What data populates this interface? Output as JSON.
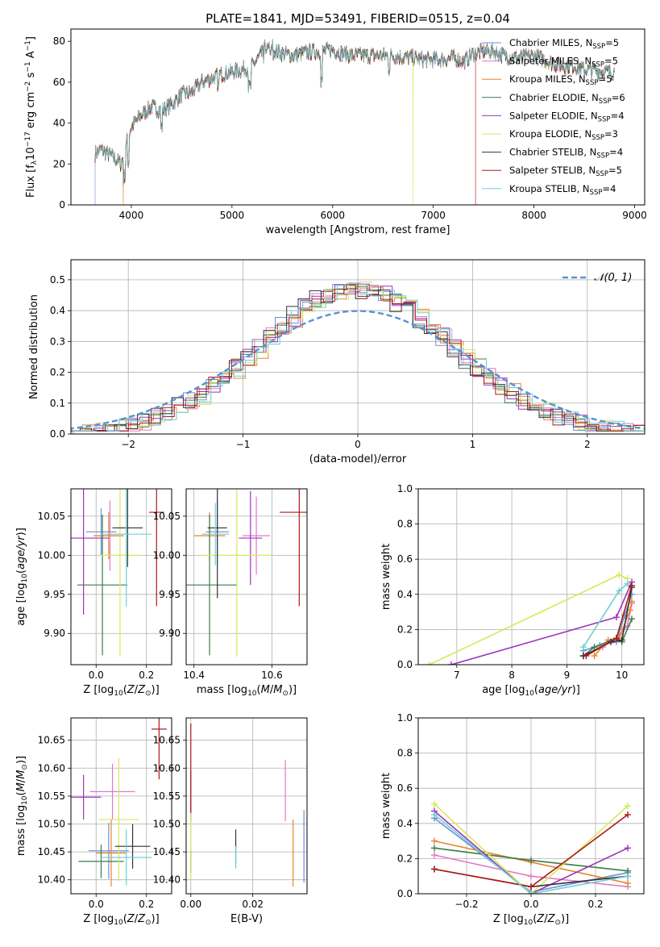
{
  "figure_title": "PLATE=1841, MJD=53491, FIBERID=0515, z=0.04",
  "colors": {
    "Chabrier MILES": "#6f8fd1",
    "Salpeter MILES": "#e07ac8",
    "Kroupa MILES": "#e8842d",
    "Chabrier ELODIE": "#3c7a4a",
    "Salpeter ELODIE": "#9b34b8",
    "Kroupa ELODIE": "#d6e85a",
    "Chabrier STELIB": "#333333",
    "Salpeter STELIB": "#b01818",
    "Kroupa STELIB": "#6fcfd6",
    "gaussian": "#5b8fd6"
  },
  "chart_data": [
    {
      "id": "spectrum",
      "type": "line",
      "title": "",
      "xlabel": "wavelength [Angstrom, rest frame]",
      "ylabel": "Flux [f",
      "ylabel_parts": [
        "Flux [f",
        "λ",
        "10",
        "−17",
        " erg cm",
        "−2",
        " s",
        "−1",
        " A",
        "−1",
        "]"
      ],
      "xlim": [
        3400,
        9100
      ],
      "ylim": [
        0,
        86
      ],
      "xticks": [
        4000,
        5000,
        6000,
        7000,
        8000,
        9000
      ],
      "yticks": [
        0,
        20,
        40,
        60,
        80
      ],
      "continuum": {
        "x": [
          3640,
          3700,
          3800,
          3900,
          3950,
          4000,
          4100,
          4200,
          4300,
          4400,
          4500,
          4600,
          4700,
          4800,
          4900,
          5000,
          5100,
          5200,
          5300,
          5400,
          5500,
          5600,
          5700,
          5800,
          5900,
          6000,
          6100,
          6200,
          6300,
          6400,
          6500,
          6600,
          6700,
          6800,
          6900,
          7000,
          7100,
          7200,
          7300,
          7400,
          7500,
          7600,
          7700,
          7800,
          7900,
          8000,
          8100,
          8200,
          8300,
          8400,
          8500,
          8600,
          8700,
          8800
        ],
        "y": [
          25,
          27,
          24,
          20,
          30,
          38,
          44,
          48,
          46,
          49,
          54,
          55,
          60,
          62,
          64,
          65,
          66,
          68,
          74,
          76,
          74,
          73,
          74,
          75,
          75,
          76,
          74,
          73,
          73,
          73,
          73,
          73,
          72,
          72,
          71,
          71,
          71,
          72,
          70,
          74,
          75,
          75,
          73,
          72,
          72,
          73,
          71,
          69,
          68,
          68,
          66,
          66,
          65,
          65
        ]
      },
      "drops": [
        {
          "series": "Chabrier MILES",
          "x": 3640
        },
        {
          "series": "Kroupa MILES",
          "x": 3920
        },
        {
          "series": "Kroupa ELODIE",
          "x": 6800
        },
        {
          "series": "Salpeter STELIB",
          "x": 7420
        }
      ],
      "series_names": [
        "Chabrier MILES, N",
        "Salpeter MILES, N",
        "Kroupa MILES, N",
        "Chabrier ELODIE, N",
        "Salpeter ELODIE, N",
        "Kroupa ELODIE, N",
        "Chabrier STELIB, N",
        "Salpeter STELIB, N",
        "Kroupa STELIB, N"
      ],
      "legend": [
        {
          "series": "Chabrier MILES",
          "label": "Chabrier MILES, N",
          "sub": "SSP",
          "value": "=5"
        },
        {
          "series": "Salpeter MILES",
          "label": "Salpeter MILES, N",
          "sub": "SSP",
          "value": "=5"
        },
        {
          "series": "Kroupa MILES",
          "label": "Kroupa MILES, N",
          "sub": "SSP",
          "value": "=5"
        },
        {
          "series": "Chabrier ELODIE",
          "label": "Chabrier ELODIE, N",
          "sub": "SSP",
          "value": "=6"
        },
        {
          "series": "Salpeter ELODIE",
          "label": "Salpeter ELODIE, N",
          "sub": "SSP",
          "value": "=4"
        },
        {
          "series": "Kroupa ELODIE",
          "label": "Kroupa ELODIE, N",
          "sub": "SSP",
          "value": "=3"
        },
        {
          "series": "Chabrier STELIB",
          "label": "Chabrier STELIB, N",
          "sub": "SSP",
          "value": "=4"
        },
        {
          "series": "Salpeter STELIB",
          "label": "Salpeter STELIB, N",
          "sub": "SSP",
          "value": "=5"
        },
        {
          "series": "Kroupa STELIB",
          "label": "Kroupa STELIB, N",
          "sub": "SSP",
          "value": "=4"
        }
      ],
      "legend_placement": "top-right",
      "grid": false
    },
    {
      "id": "residuals",
      "type": "histogram",
      "title": "",
      "xlabel": "(data-model)/error",
      "ylabel": "Normed distribution",
      "xlim": [
        -2.5,
        2.5
      ],
      "ylim": [
        0,
        0.565
      ],
      "xticks": [
        -2,
        -1,
        0,
        1,
        2
      ],
      "yticks": [
        0.0,
        0.1,
        0.2,
        0.3,
        0.4,
        0.5
      ],
      "bin_width": 0.1,
      "reference_curve": {
        "name": "𝒩(0, 1)",
        "mean": 0,
        "sigma": 1
      },
      "legend_placement": "top-right",
      "grid": true
    },
    {
      "id": "age_vs_Z",
      "type": "errorbar",
      "xlabel": "Z [log",
      "ylabel": "age  [log",
      "xlim": [
        -0.1,
        0.3
      ],
      "ylim": [
        9.86,
        10.085
      ],
      "xticks": [
        0.0,
        0.2
      ],
      "yticks": [
        9.9,
        9.95,
        10.0,
        10.05
      ],
      "points": [
        {
          "series": "Chabrier MILES",
          "x": 0.02,
          "xerr": 0.06,
          "y": 10.03,
          "yerr": 0.03
        },
        {
          "series": "Salpeter MILES",
          "x": 0.055,
          "xerr": 0.05,
          "y": 10.025,
          "yerr": 0.045
        },
        {
          "series": "Kroupa MILES",
          "x": 0.05,
          "xerr": 0.06,
          "y": 10.025,
          "yerr": 0.03
        },
        {
          "series": "Chabrier ELODIE",
          "x": 0.025,
          "xerr": 0.1,
          "y": 9.962,
          "yerr": 0.09
        },
        {
          "series": "Salpeter ELODIE",
          "x": -0.05,
          "xerr": 0.1,
          "y": 10.022,
          "yerr": 0.098
        },
        {
          "series": "Kroupa ELODIE",
          "x": 0.095,
          "xerr": 0.08,
          "y": 10.0,
          "yerr": 0.13
        },
        {
          "series": "Chabrier STELIB",
          "x": 0.125,
          "xerr": 0.06,
          "y": 10.035,
          "yerr": 0.05
        },
        {
          "series": "Salpeter STELIB",
          "x": 0.24,
          "xerr": 0.03,
          "y": 10.055,
          "yerr": 0.12
        },
        {
          "series": "Kroupa STELIB",
          "x": 0.12,
          "xerr": 0.1,
          "y": 10.027,
          "yerr": 0.093
        }
      ],
      "grid": true
    },
    {
      "id": "age_vs_mass",
      "type": "errorbar",
      "xlabel": "mass [log",
      "xlim": [
        10.38,
        10.69
      ],
      "ylim": [
        9.86,
        10.085
      ],
      "xticks": [
        10.4,
        10.6
      ],
      "yticks": [
        9.9,
        9.95,
        10.0,
        10.05
      ],
      "points": [
        {
          "series": "Chabrier MILES",
          "x": 10.46,
          "xerr": 0.03,
          "y": 10.03,
          "yerr": 0.042
        },
        {
          "series": "Salpeter MILES",
          "x": 10.56,
          "xerr": 0.035,
          "y": 10.025,
          "yerr": 0.05
        },
        {
          "series": "Kroupa MILES",
          "x": 10.44,
          "xerr": 0.04,
          "y": 10.025,
          "yerr": 0.03
        },
        {
          "series": "Chabrier ELODIE",
          "x": 10.44,
          "xerr": 0.07,
          "y": 9.962,
          "yerr": 0.09
        },
        {
          "series": "Salpeter ELODIE",
          "x": 10.545,
          "xerr": 0.03,
          "y": 10.022,
          "yerr": 0.06
        },
        {
          "series": "Kroupa ELODIE",
          "x": 10.51,
          "xerr": 0.09,
          "y": 10.0,
          "yerr": 0.13
        },
        {
          "series": "Chabrier STELIB",
          "x": 10.46,
          "xerr": 0.025,
          "y": 10.035,
          "yerr": 0.09
        },
        {
          "series": "Salpeter STELIB",
          "x": 10.67,
          "xerr": 0.05,
          "y": 10.055,
          "yerr": 0.12
        },
        {
          "series": "Kroupa STELIB",
          "x": 10.455,
          "xerr": 0.035,
          "y": 10.027,
          "yerr": 0.04
        }
      ],
      "grid": true
    },
    {
      "id": "weight_vs_age",
      "type": "line",
      "xlabel": "age  [log",
      "ylabel": "mass weight",
      "xlim": [
        6.3,
        10.4
      ],
      "ylim": [
        0,
        1.0
      ],
      "xticks": [
        7,
        8,
        9,
        10
      ],
      "yticks": [
        0.0,
        0.2,
        0.4,
        0.6,
        0.8,
        1.0
      ],
      "series": [
        {
          "series": "Chabrier MILES",
          "x": [
            9.3,
            9.6,
            9.9,
            10.05,
            10.18
          ],
          "y": [
            0.08,
            0.11,
            0.13,
            0.28,
            0.4
          ]
        },
        {
          "series": "Salpeter MILES",
          "x": [
            9.3,
            9.65,
            9.9,
            10.1,
            10.18
          ],
          "y": [
            0.05,
            0.1,
            0.15,
            0.22,
            0.35
          ]
        },
        {
          "series": "Kroupa MILES",
          "x": [
            9.5,
            9.75,
            9.95,
            10.15,
            10.18
          ],
          "y": [
            0.05,
            0.14,
            0.15,
            0.31,
            0.36
          ]
        },
        {
          "series": "Chabrier ELODIE",
          "x": [
            9.3,
            9.5,
            9.9,
            10.0,
            10.18
          ],
          "y": [
            0.05,
            0.1,
            0.15,
            0.13,
            0.26
          ]
        },
        {
          "series": "Salpeter ELODIE",
          "x": [
            6.9,
            9.9,
            10.18
          ],
          "y": [
            0.0,
            0.27,
            0.47
          ]
        },
        {
          "series": "Kroupa ELODIE",
          "x": [
            6.5,
            9.95,
            10.1
          ],
          "y": [
            0.0,
            0.51,
            0.49
          ]
        },
        {
          "series": "Chabrier STELIB",
          "x": [
            9.3,
            9.8,
            10.0,
            10.18
          ],
          "y": [
            0.05,
            0.13,
            0.14,
            0.44
          ]
        },
        {
          "series": "Salpeter STELIB",
          "x": [
            9.35,
            9.9,
            10.18
          ],
          "y": [
            0.05,
            0.15,
            0.45
          ]
        },
        {
          "series": "Kroupa STELIB",
          "x": [
            9.3,
            9.95,
            10.1
          ],
          "y": [
            0.1,
            0.42,
            0.46
          ]
        }
      ],
      "grid": true
    },
    {
      "id": "mass_vs_Z",
      "type": "errorbar",
      "xlabel": "Z [log",
      "ylabel": "mass [log",
      "xlim": [
        -0.1,
        0.3
      ],
      "ylim": [
        10.375,
        10.69
      ],
      "xticks": [
        0.0,
        0.2
      ],
      "yticks": [
        10.4,
        10.45,
        10.5,
        10.55,
        10.6,
        10.65
      ],
      "points": [
        {
          "series": "Chabrier MILES",
          "x": 0.05,
          "xerr": 0.08,
          "y": 10.452,
          "yerr": 0.05
        },
        {
          "series": "Salpeter MILES",
          "x": 0.065,
          "xerr": 0.09,
          "y": 10.558,
          "yerr": 0.05
        },
        {
          "series": "Kroupa MILES",
          "x": 0.06,
          "xerr": 0.06,
          "y": 10.448,
          "yerr": 0.06
        },
        {
          "series": "Chabrier ELODIE",
          "x": 0.02,
          "xerr": 0.09,
          "y": 10.433,
          "yerr": 0.03
        },
        {
          "series": "Salpeter ELODIE",
          "x": -0.05,
          "xerr": 0.07,
          "y": 10.548,
          "yerr": 0.04
        },
        {
          "series": "Kroupa ELODIE",
          "x": 0.09,
          "xerr": 0.08,
          "y": 10.508,
          "yerr": 0.11
        },
        {
          "series": "Chabrier STELIB",
          "x": 0.145,
          "xerr": 0.07,
          "y": 10.46,
          "yerr": 0.04
        },
        {
          "series": "Salpeter STELIB",
          "x": 0.25,
          "xerr": 0.03,
          "y": 10.67,
          "yerr": 0.09
        },
        {
          "series": "Kroupa STELIB",
          "x": 0.12,
          "xerr": 0.1,
          "y": 10.44,
          "yerr": 0.05
        }
      ],
      "grid": true
    },
    {
      "id": "mass_vs_EBV",
      "type": "errorbar",
      "xlabel": "E(B-V)",
      "xlim": [
        -0.0015,
        0.0375
      ],
      "ylim": [
        10.375,
        10.69
      ],
      "xticks": [
        0.0,
        0.02
      ],
      "yticks": [
        10.4,
        10.45,
        10.5,
        10.55,
        10.6,
        10.65
      ],
      "points": [
        {
          "series": "Chabrier MILES",
          "x": 0.0365,
          "y": 10.46,
          "yerr": 0.065
        },
        {
          "series": "Salpeter MILES",
          "x": 0.0305,
          "y": 10.56,
          "yerr": 0.055
        },
        {
          "series": "Kroupa MILES",
          "x": 0.033,
          "y": 10.448,
          "yerr": 0.06
        },
        {
          "series": "Chabrier ELODIE",
          "x": 0.0,
          "y": 10.433,
          "yerr": 0.02
        },
        {
          "series": "Salpeter ELODIE",
          "x": 0.0,
          "y": 10.55,
          "yerr": 0.045
        },
        {
          "series": "Kroupa ELODIE",
          "x": 0.0,
          "y": 10.46,
          "yerr": 0.06
        },
        {
          "series": "Chabrier STELIB",
          "x": 0.0145,
          "y": 10.46,
          "yerr": 0.03
        },
        {
          "series": "Salpeter STELIB",
          "x": 0.0,
          "y": 10.6,
          "yerr": 0.08
        },
        {
          "series": "Kroupa STELIB",
          "x": 0.0145,
          "y": 10.44,
          "yerr": 0.02
        }
      ],
      "grid": true
    },
    {
      "id": "weight_vs_Z",
      "type": "line",
      "xlabel": "Z [log",
      "ylabel": "mass weight",
      "xlim": [
        -0.35,
        0.35
      ],
      "ylim": [
        0,
        1.0
      ],
      "xticks": [
        -0.2,
        0.0,
        0.2
      ],
      "yticks": [
        0.0,
        0.2,
        0.4,
        0.6,
        0.8,
        1.0
      ],
      "series": [
        {
          "series": "Chabrier MILES",
          "x": [
            -0.3,
            0.0,
            0.3
          ],
          "y": [
            0.43,
            0.01,
            0.12
          ]
        },
        {
          "series": "Salpeter MILES",
          "x": [
            -0.3,
            0.0,
            0.3
          ],
          "y": [
            0.22,
            0.1,
            0.04
          ]
        },
        {
          "series": "Kroupa MILES",
          "x": [
            -0.3,
            0.0,
            0.3
          ],
          "y": [
            0.3,
            0.18,
            0.06
          ]
        },
        {
          "series": "Chabrier ELODIE",
          "x": [
            -0.3,
            0.0,
            0.3
          ],
          "y": [
            0.26,
            0.19,
            0.13
          ]
        },
        {
          "series": "Salpeter ELODIE",
          "x": [
            -0.3,
            0.0,
            0.3
          ],
          "y": [
            0.47,
            0.0,
            0.26
          ]
        },
        {
          "series": "Kroupa ELODIE",
          "x": [
            -0.3,
            0.0,
            0.3
          ],
          "y": [
            0.51,
            0.0,
            0.5
          ]
        },
        {
          "series": "Chabrier STELIB",
          "x": [
            -0.3,
            0.0,
            0.3
          ],
          "y": [
            0.14,
            0.04,
            0.1
          ]
        },
        {
          "series": "Salpeter STELIB",
          "x": [
            -0.3,
            0.0,
            0.3
          ],
          "y": [
            0.14,
            0.04,
            0.45
          ]
        },
        {
          "series": "Kroupa STELIB",
          "x": [
            -0.3,
            0.0,
            0.3
          ],
          "y": [
            0.45,
            0.0,
            0.1
          ]
        }
      ],
      "grid": true
    }
  ]
}
